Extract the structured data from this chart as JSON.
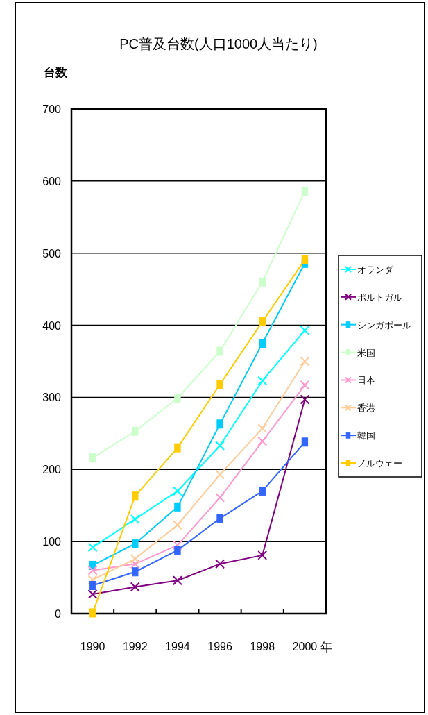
{
  "chart_data": {
    "type": "line",
    "title": "PC普及台数(人口1000人当たり)",
    "ylabel": "台数",
    "xlabel": "年",
    "categories": [
      "1990",
      "1992",
      "1994",
      "1996",
      "1998",
      "2000"
    ],
    "ylim": [
      0,
      700
    ],
    "yticks": [
      0,
      100,
      200,
      300,
      400,
      500,
      600,
      700
    ],
    "grid": "y",
    "legend": "right",
    "series": [
      {
        "name": "オランダ",
        "color": "#00ffff",
        "marker": "cross",
        "values": [
          92,
          131,
          170,
          233,
          323,
          393
        ]
      },
      {
        "name": "ポルトガル",
        "color": "#800080",
        "marker": "cross",
        "values": [
          27,
          37,
          46,
          69,
          81,
          297
        ]
      },
      {
        "name": "シンガポール",
        "color": "#00ccff",
        "marker": "square",
        "values": [
          67,
          97,
          148,
          263,
          375,
          486
        ]
      },
      {
        "name": "米国",
        "color": "#ccffcc",
        "marker": "square",
        "values": [
          216,
          253,
          299,
          364,
          460,
          586
        ]
      },
      {
        "name": "日本",
        "color": "#ff99cc",
        "marker": "cross",
        "values": [
          60,
          69,
          95,
          161,
          239,
          317
        ]
      },
      {
        "name": "香港",
        "color": "#ffcc99",
        "marker": "cross",
        "values": [
          47,
          76,
          123,
          193,
          257,
          350
        ]
      },
      {
        "name": "韓国",
        "color": "#3366ff",
        "marker": "square",
        "values": [
          39,
          58,
          88,
          132,
          170,
          238
        ]
      },
      {
        "name": "ノルウェー",
        "color": "#ffcc00",
        "marker": "square",
        "values": [
          1,
          163,
          230,
          318,
          405,
          491
        ]
      }
    ]
  }
}
